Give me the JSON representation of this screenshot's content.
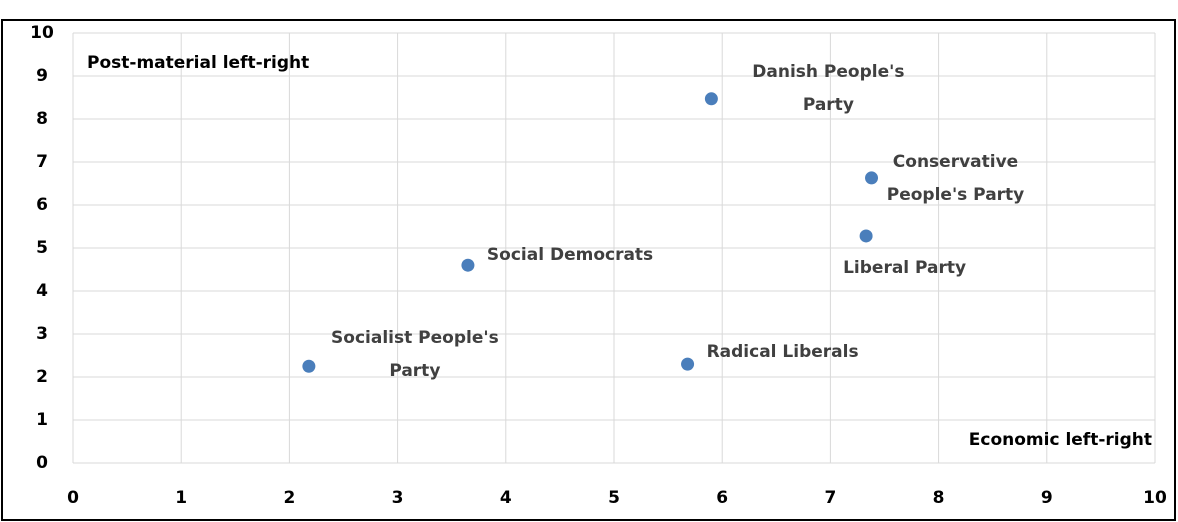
{
  "chart_data": {
    "type": "scatter",
    "x_label": "Economic left-right",
    "y_label": "Post-material left-right",
    "labels": [
      "Socialist People's Party",
      "Social Democrats",
      "Radical Liberals",
      "Danish People's Party",
      "Conservative People's Party",
      "Liberal Party"
    ],
    "x": [
      2.18,
      3.65,
      5.68,
      5.9,
      7.38,
      7.33
    ],
    "values": [
      2.25,
      4.6,
      2.3,
      8.47,
      6.63,
      5.28
    ],
    "color": "#4a7ebb",
    "xlim": [
      0,
      10
    ],
    "xticks": [
      0,
      1,
      2,
      3,
      4,
      5,
      6,
      7,
      8,
      9,
      10
    ],
    "ylim": [
      0,
      10
    ],
    "yticks": [
      0,
      1,
      2,
      3,
      4,
      5,
      6,
      7,
      8,
      9,
      10
    ],
    "grid": true
  }
}
